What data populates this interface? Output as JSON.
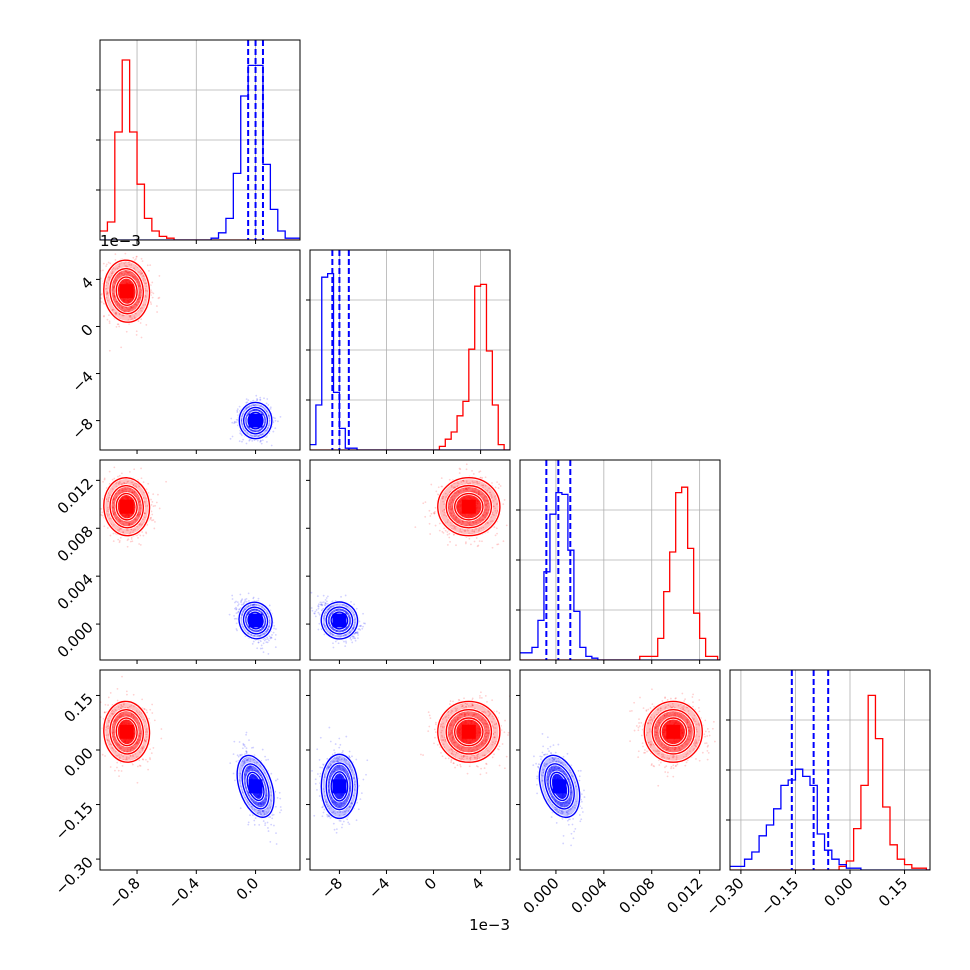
{
  "chart_data": {
    "type": "corner",
    "grid": true,
    "colors": {
      "series_a": "#ff0000",
      "series_b": "#0000ff",
      "quantile_lines": "#0000ff"
    },
    "parameters": [
      {
        "index": 0,
        "range": [
          -1.05,
          0.3
        ],
        "ticks": [
          -0.8,
          -0.4,
          0.0
        ],
        "tick_labels": [
          "−0.8",
          "−0.4",
          "0.0"
        ],
        "offset_label": ""
      },
      {
        "index": 1,
        "range": [
          -0.0105,
          0.0065
        ],
        "ticks": [
          -0.008,
          -0.004,
          0.0,
          0.004
        ],
        "tick_labels": [
          "−8",
          "−4",
          "0",
          "4"
        ],
        "offset_label": "1e−3"
      },
      {
        "index": 2,
        "range": [
          -0.003,
          0.0137
        ],
        "ticks": [
          0.0,
          0.004,
          0.008,
          0.012
        ],
        "tick_labels": [
          "0.000",
          "0.004",
          "0.008",
          "0.012"
        ],
        "offset_label": ""
      },
      {
        "index": 3,
        "range": [
          -0.33,
          0.22
        ],
        "ticks": [
          -0.3,
          -0.15,
          0.0,
          0.15
        ],
        "tick_labels": [
          "−0.30",
          "−0.15",
          "0.00",
          "0.15"
        ],
        "offset_label": ""
      }
    ],
    "series": [
      {
        "color": "#ff0000",
        "center": [
          -0.87,
          0.003,
          0.0098,
          0.05
        ],
        "sd": [
          0.07,
          0.0012,
          0.0011,
          0.038
        ]
      },
      {
        "color": "#0000ff",
        "center": [
          0.0,
          -0.008,
          0.0003,
          -0.1
        ],
        "sd": [
          0.05,
          0.0007,
          0.0007,
          0.04
        ]
      }
    ],
    "histograms": [
      {
        "param": 0,
        "bin_edges": [
          -1.05,
          -1.0,
          -0.95,
          -0.9,
          -0.85,
          -0.8,
          -0.75,
          -0.7,
          -0.65,
          -0.6,
          -0.55,
          -0.5,
          -0.45,
          -0.4,
          -0.35,
          -0.3,
          -0.25,
          -0.2,
          -0.15,
          -0.1,
          -0.05,
          0.0,
          0.05,
          0.1,
          0.15,
          0.2,
          0.25,
          0.3
        ],
        "series_a": [
          0.05,
          0.1,
          0.6,
          1.0,
          0.6,
          0.31,
          0.12,
          0.05,
          0.02,
          0.01,
          0,
          0,
          0,
          0,
          0,
          0,
          0,
          0,
          0,
          0,
          0,
          0,
          0,
          0,
          0,
          0,
          0
        ],
        "series_b": [
          0,
          0,
          0,
          0,
          0,
          0,
          0,
          0,
          0,
          0,
          0,
          0,
          0,
          0,
          0,
          0.01,
          0.04,
          0.12,
          0.37,
          0.8,
          0.97,
          0.97,
          0.42,
          0.17,
          0.05,
          0.01,
          0.01
        ],
        "quantiles": [
          -0.05,
          0.0,
          0.05
        ]
      },
      {
        "param": 1,
        "bin_edges": [
          -0.0105,
          -0.01,
          -0.0095,
          -0.009,
          -0.0085,
          -0.008,
          -0.0075,
          -0.007,
          -0.0065,
          -0.006,
          -0.0055,
          -0.005,
          -0.0045,
          -0.004,
          -0.0035,
          -0.003,
          -0.0025,
          -0.002,
          -0.0015,
          -0.001,
          -0.0005,
          0.0,
          0.0005,
          0.001,
          0.0015,
          0.002,
          0.0025,
          0.003,
          0.0035,
          0.004,
          0.0045,
          0.005,
          0.0055,
          0.006,
          0.0065
        ],
        "series_a": [
          0,
          0,
          0,
          0,
          0,
          0,
          0,
          0,
          0,
          0,
          0,
          0,
          0,
          0,
          0,
          0,
          0,
          0,
          0,
          0,
          0,
          0,
          0.02,
          0.06,
          0.1,
          0.19,
          0.27,
          0.56,
          0.91,
          0.92,
          0.55,
          0.25,
          0.03,
          0.0
        ],
        "series_b": [
          0.03,
          0.25,
          0.96,
          0.98,
          0.32,
          0.12,
          0.01,
          0.01,
          0,
          0,
          0,
          0,
          0,
          0,
          0,
          0,
          0,
          0,
          0,
          0,
          0,
          0,
          0,
          0,
          0,
          0,
          0,
          0,
          0,
          0,
          0,
          0,
          0,
          0
        ],
        "quantiles": [
          -0.0086,
          -0.008,
          -0.0072
        ]
      },
      {
        "param": 2,
        "bin_edges": [
          -0.003,
          -0.0025,
          -0.002,
          -0.0015,
          -0.001,
          -0.0005,
          0.0,
          0.0005,
          0.001,
          0.0015,
          0.002,
          0.0025,
          0.003,
          0.0035,
          0.004,
          0.0045,
          0.005,
          0.0055,
          0.006,
          0.0065,
          0.007,
          0.0075,
          0.008,
          0.0085,
          0.009,
          0.0095,
          0.01,
          0.0105,
          0.011,
          0.0115,
          0.012,
          0.0125,
          0.013,
          0.0135,
          0.0137
        ],
        "series_a": [
          0,
          0,
          0,
          0,
          0,
          0,
          0,
          0,
          0,
          0,
          0,
          0,
          0,
          0,
          0,
          0,
          0,
          0,
          0,
          0,
          0.02,
          0.02,
          0.02,
          0.12,
          0.38,
          0.6,
          0.93,
          0.96,
          0.62,
          0.26,
          0.12,
          0.02,
          0.02,
          0.0
        ],
        "series_b": [
          0.04,
          0.04,
          0.07,
          0.22,
          0.49,
          0.81,
          0.93,
          0.92,
          0.61,
          0.27,
          0.07,
          0.02,
          0.01,
          0,
          0,
          0,
          0,
          0,
          0,
          0,
          0,
          0,
          0,
          0,
          0,
          0,
          0,
          0,
          0,
          0,
          0,
          0,
          0,
          0
        ],
        "quantiles": [
          -0.0008,
          0.0002,
          0.0012
        ]
      },
      {
        "param": 3,
        "bin_edges": [
          -0.33,
          -0.31,
          -0.29,
          -0.27,
          -0.25,
          -0.23,
          -0.21,
          -0.19,
          -0.17,
          -0.15,
          -0.13,
          -0.11,
          -0.09,
          -0.07,
          -0.05,
          -0.03,
          -0.01,
          0.01,
          0.03,
          0.05,
          0.07,
          0.09,
          0.11,
          0.13,
          0.15,
          0.17,
          0.19,
          0.21,
          0.22
        ],
        "series_a": [
          0,
          0,
          0,
          0,
          0,
          0,
          0,
          0,
          0,
          0,
          0,
          0,
          0,
          0,
          0,
          0.02,
          0.05,
          0.23,
          0.47,
          0.97,
          0.73,
          0.35,
          0.14,
          0.06,
          0.03,
          0.01,
          0.01,
          0.0
        ],
        "series_b": [
          0.02,
          0.02,
          0.06,
          0.1,
          0.19,
          0.25,
          0.34,
          0.47,
          0.5,
          0.56,
          0.52,
          0.47,
          0.2,
          0.11,
          0.06,
          0.03,
          0.01,
          0.01,
          0,
          0,
          0,
          0,
          0,
          0,
          0,
          0,
          0,
          0
        ],
        "quantiles": [
          -0.16,
          -0.1,
          -0.06
        ]
      }
    ]
  }
}
